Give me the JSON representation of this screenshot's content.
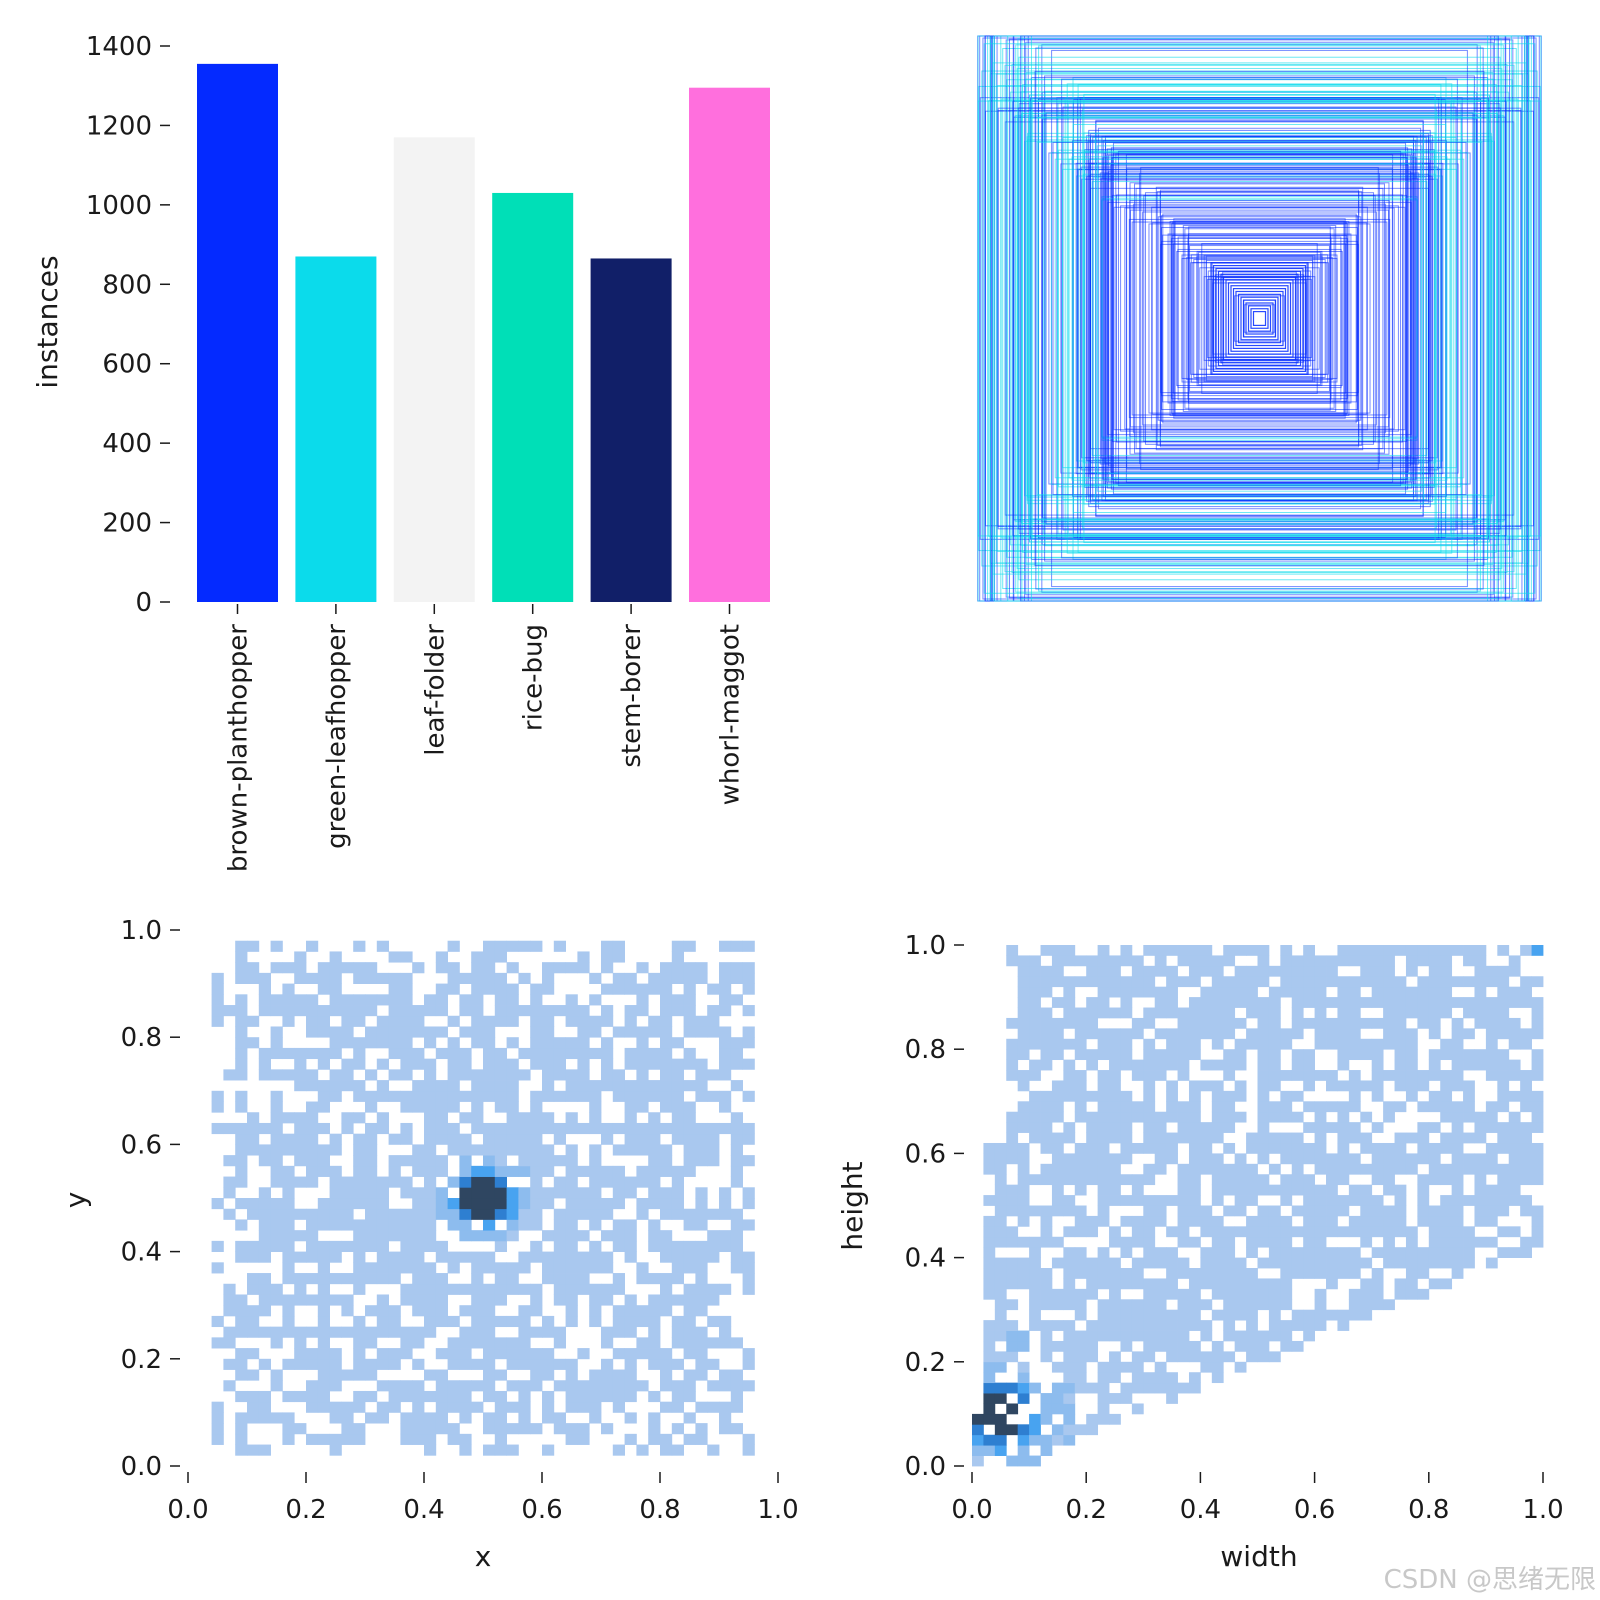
{
  "chart_data": [
    {
      "type": "bar",
      "title": "",
      "xlabel": "",
      "ylabel": "instances",
      "categories": [
        "brown-planthopper",
        "green-leafhopper",
        "leaf-folder",
        "rice-bug",
        "stem-borer",
        "whorl-maggot"
      ],
      "values": [
        1355,
        870,
        1170,
        1030,
        865,
        1295
      ],
      "colors": [
        "#042aff",
        "#0bdbeb",
        "#f3f3f3",
        "#00dfb7",
        "#111f68",
        "#ff6fdd"
      ],
      "ylim": [
        0,
        1400
      ],
      "yticks": [
        "0",
        "200",
        "400",
        "600",
        "800",
        "1000",
        "1200",
        "1400"
      ]
    },
    {
      "type": "box-overlay",
      "title": "",
      "description_values": "bounding boxes centered at (0.5, 0.5), widths/heights mostly 0.05–1.0",
      "colors": [
        "#042aff",
        "#0bdbeb"
      ]
    },
    {
      "type": "heatmap",
      "title": "",
      "xlabel": "x",
      "ylabel": "y",
      "xlim": [
        0,
        1
      ],
      "ylim": [
        0,
        1
      ],
      "xticks": [
        "0.0",
        "0.2",
        "0.4",
        "0.6",
        "0.8",
        "1.0"
      ],
      "yticks": [
        "0.0",
        "0.2",
        "0.4",
        "0.6",
        "0.8",
        "1.0"
      ],
      "peak": [
        0.5,
        0.5
      ]
    },
    {
      "type": "heatmap",
      "title": "",
      "xlabel": "width",
      "ylabel": "height",
      "xlim": [
        0,
        1
      ],
      "ylim": [
        0,
        1
      ],
      "xticks": [
        "0.0",
        "0.2",
        "0.4",
        "0.6",
        "0.8",
        "1.0"
      ],
      "yticks": [
        "0.0",
        "0.2",
        "0.4",
        "0.6",
        "0.8",
        "1.0"
      ],
      "peak": [
        0.05,
        0.1
      ]
    }
  ],
  "watermark": "CSDN @思绪无限"
}
